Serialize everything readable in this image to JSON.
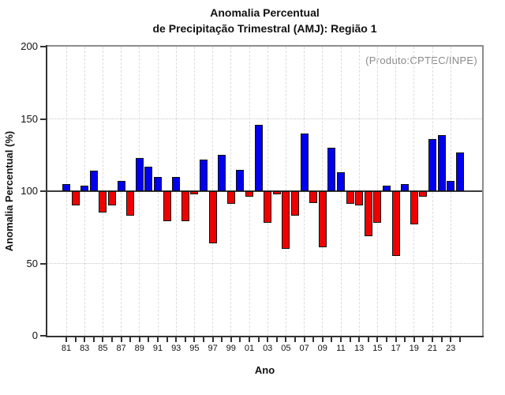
{
  "chart_data": {
    "type": "bar",
    "title": "Anomalia Percentual de Precipitação Trimestral (AMJ): Região 1",
    "title_lines": [
      "Anomalia Percentual",
      "de Precipitação Trimestral (AMJ): Região 1"
    ],
    "annotation": "(Produto:CPTEC/INPE)",
    "xlabel": "Ano",
    "ylabel": "Anomalia Percentual (%)",
    "ylim": [
      0,
      200
    ],
    "yticks": [
      0,
      50,
      100,
      150,
      200
    ],
    "baseline": 100,
    "grid": {
      "horizontal_dotted_at": [
        50,
        150
      ],
      "vertical_dashed_at_labeled_years": true
    },
    "x_tick_label_every": 2,
    "categories": [
      "81",
      "82",
      "83",
      "84",
      "85",
      "86",
      "87",
      "88",
      "89",
      "90",
      "91",
      "92",
      "93",
      "94",
      "95",
      "96",
      "97",
      "98",
      "99",
      "00",
      "01",
      "02",
      "03",
      "04",
      "05",
      "06",
      "07",
      "08",
      "09",
      "10",
      "11",
      "12",
      "13",
      "14",
      "15",
      "16",
      "17",
      "18",
      "19",
      "20",
      "21",
      "22",
      "23",
      "24"
    ],
    "values": [
      105,
      90,
      104,
      114,
      85,
      90,
      107,
      83,
      123,
      117,
      110,
      79,
      110,
      79,
      98,
      122,
      64,
      125,
      91,
      115,
      96,
      146,
      78,
      98,
      60,
      83,
      140,
      92,
      61,
      130,
      113,
      91,
      90,
      69,
      78,
      104,
      55,
      105,
      77,
      96,
      136,
      139,
      107,
      127
    ],
    "colors": {
      "above_baseline": "#0000ee",
      "below_baseline": "#ee0000",
      "annotation": "#8a8a8a",
      "frame_light": "#8c8c8c",
      "axis_dark": "#333333"
    }
  }
}
